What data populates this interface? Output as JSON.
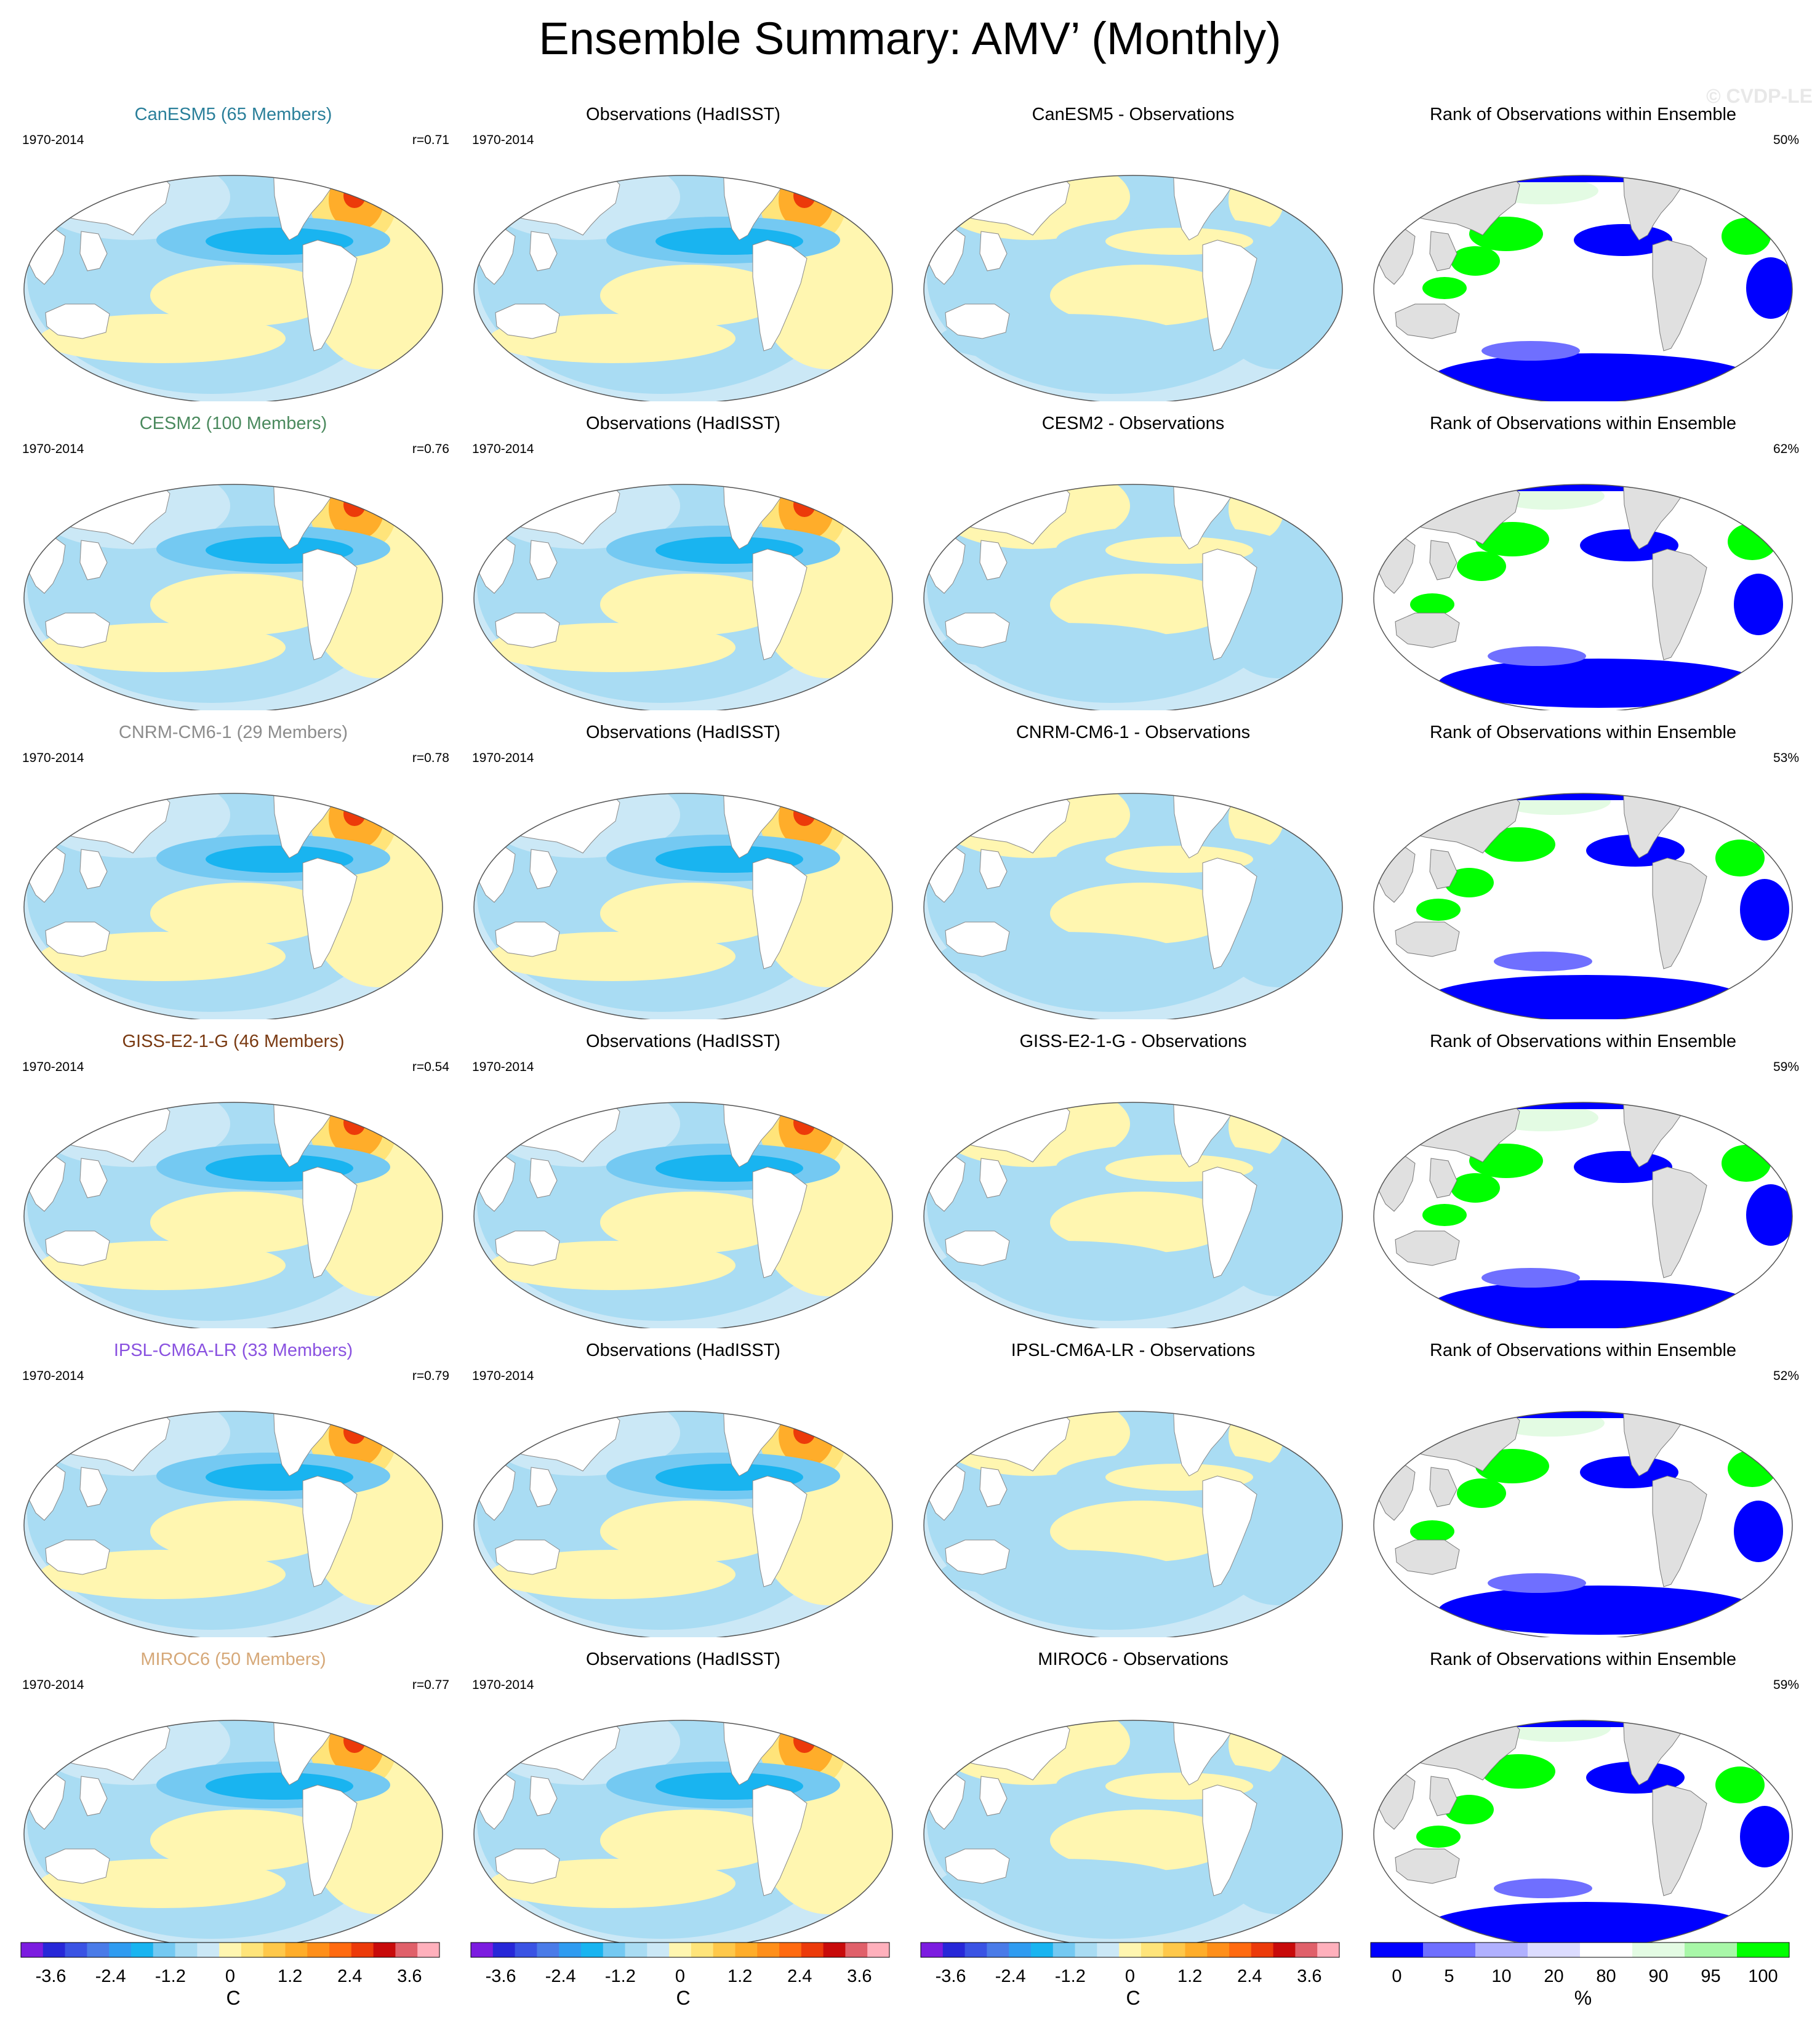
{
  "page": {
    "title": "Ensemble Summary: AMV’ (Monthly)",
    "watermark": "© CVDP-LE"
  },
  "colors": {
    "diverging_scale": [
      "#7c1ce0",
      "#2727d8",
      "#3a53e4",
      "#4a7be8",
      "#2f9bf0",
      "#19b4f0",
      "#74c9f2",
      "#a9dcf3",
      "#cbe8f6",
      "#fff6b0",
      "#ffe47a",
      "#ffc84a",
      "#ffad2a",
      "#ff8f1a",
      "#ff6a10",
      "#ec3a0a",
      "#c80a0a",
      "#e0606a",
      "#ffb0bc"
    ],
    "rank_scale": [
      "#0000ff",
      "#6f6fff",
      "#b0b0ff",
      "#dcdcff",
      "#ffffff",
      "#e3fbe3",
      "#a8f7a8",
      "#00ff00"
    ],
    "land": "#ffffff",
    "land_rank": "#e0e0e0"
  },
  "rows": [
    {
      "model_label": "CanESM5 (65 Members)",
      "model_label_color": "#2a7f9a",
      "period": "1970-2014",
      "correlation": "r=0.71",
      "obs_label": "Observations (HadISST)",
      "diff_label": "CanESM5 - Observations",
      "rank_label": "Rank of Observations within Ensemble",
      "rank_pct": "50%"
    },
    {
      "model_label": "CESM2 (100 Members)",
      "model_label_color": "#4b8a5e",
      "period": "1970-2014",
      "correlation": "r=0.76",
      "obs_label": "Observations (HadISST)",
      "diff_label": "CESM2 - Observations",
      "rank_label": "Rank of Observations within Ensemble",
      "rank_pct": "62%"
    },
    {
      "model_label": "CNRM-CM6-1 (29 Members)",
      "model_label_color": "#8c8c8c",
      "period": "1970-2014",
      "correlation": "r=0.78",
      "obs_label": "Observations (HadISST)",
      "diff_label": "CNRM-CM6-1 - Observations",
      "rank_label": "Rank of Observations within Ensemble",
      "rank_pct": "53%"
    },
    {
      "model_label": "GISS-E2-1-G (46 Members)",
      "model_label_color": "#7a3a12",
      "period": "1970-2014",
      "correlation": "r=0.54",
      "obs_label": "Observations (HadISST)",
      "diff_label": "GISS-E2-1-G - Observations",
      "rank_label": "Rank of Observations within Ensemble",
      "rank_pct": "59%"
    },
    {
      "model_label": "IPSL-CM6A-LR (33 Members)",
      "model_label_color": "#8a52e0",
      "period": "1970-2014",
      "correlation": "r=0.79",
      "obs_label": "Observations (HadISST)",
      "diff_label": "IPSL-CM6A-LR - Observations",
      "rank_label": "Rank of Observations within Ensemble",
      "rank_pct": "52%"
    },
    {
      "model_label": "MIROC6 (50 Members)",
      "model_label_color": "#d6a878",
      "period": "1970-2014",
      "correlation": "r=0.77",
      "obs_label": "Observations (HadISST)",
      "diff_label": "MIROC6 - Observations",
      "rank_label": "Rank of Observations within Ensemble",
      "rank_pct": "59%"
    }
  ],
  "colorbars": {
    "sst": {
      "ticks": [
        "-3.6",
        "-2.4",
        "-1.2",
        "0",
        "1.2",
        "2.4",
        "3.6"
      ],
      "unit": "C"
    },
    "rank": {
      "ticks": [
        "0",
        "5",
        "10",
        "20",
        "80",
        "90",
        "95",
        "100"
      ],
      "unit": "%"
    }
  }
}
